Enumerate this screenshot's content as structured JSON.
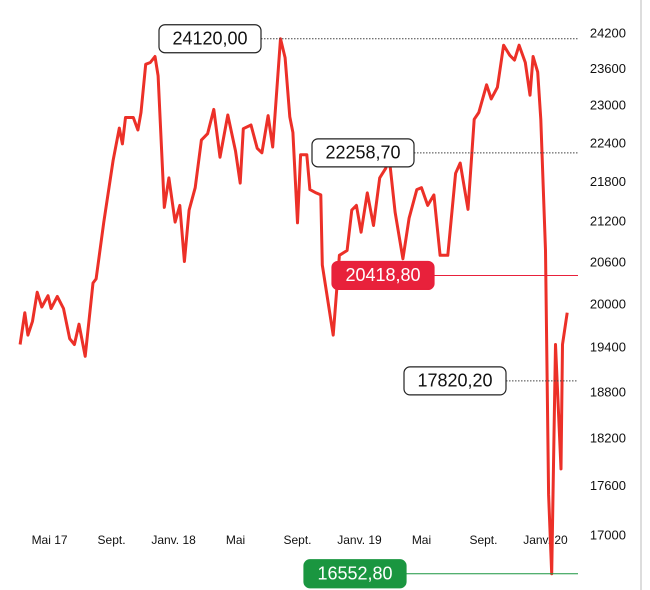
{
  "chart_data": {
    "type": "line",
    "x": [
      -1.9,
      -1.6,
      -1.4,
      -1.1,
      -0.8,
      -0.5,
      -0.1,
      0.1,
      0.5,
      0.9,
      1.3,
      1.6,
      1.9,
      2.3,
      2.8,
      3.0,
      3.5,
      4.1,
      4.5,
      4.7,
      4.9,
      5.4,
      5.7,
      5.9,
      6.2,
      6.5,
      6.8,
      7.0,
      7.4,
      7.7,
      8.1,
      8.4,
      8.7,
      9.0,
      9.4,
      9.8,
      10.2,
      10.6,
      11.0,
      11.5,
      12.0,
      12.3,
      12.5,
      13.0,
      13.4,
      13.7,
      14.1,
      14.4,
      14.9,
      15.2,
      15.5,
      15.7,
      16.0,
      16.2,
      16.6,
      16.8,
      17.2,
      17.5,
      17.6,
      18.3,
      18.7,
      19.2,
      19.5,
      19.8,
      20.1,
      20.5,
      20.9,
      21.3,
      21.7,
      21.9,
      22.3,
      22.8,
      23.2,
      23.7,
      24.0,
      24.4,
      24.8,
      25.2,
      25.7,
      26.2,
      26.5,
      27.0,
      27.4,
      27.7,
      28.2,
      28.5,
      28.9,
      29.3,
      29.7,
      30.0,
      30.3,
      30.7,
      31.0,
      31.2,
      31.5,
      31.7,
      32.0,
      32.2,
      32.4,
      32.65,
      33.0,
      33.1,
      33.4
    ],
    "series": [
      {
        "color": "#ec3028",
        "values": [
          19450,
          19890,
          19580,
          19770,
          20180,
          19970,
          20130,
          19950,
          20120,
          19950,
          19530,
          19450,
          19730,
          19290,
          20310,
          20370,
          21200,
          22140,
          22650,
          22400,
          22820,
          22820,
          22620,
          22900,
          23690,
          23720,
          23820,
          23500,
          21420,
          21870,
          21200,
          21450,
          20620,
          21380,
          21720,
          22460,
          22560,
          22950,
          22190,
          22860,
          22290,
          21790,
          22640,
          22700,
          22330,
          22260,
          22850,
          22350,
          24120,
          23800,
          22830,
          22580,
          21190,
          22230,
          22230,
          21690,
          21640,
          21610,
          20570,
          19580,
          20710,
          20780,
          21380,
          21450,
          21050,
          21640,
          21150,
          21870,
          22020,
          22230,
          21350,
          20660,
          21260,
          21690,
          21720,
          21450,
          21610,
          20710,
          20710,
          21940,
          22100,
          21390,
          22790,
          22900,
          23350,
          23120,
          23310,
          24010,
          23840,
          23760,
          24010,
          23720,
          23180,
          23820,
          23560,
          22790,
          20780,
          17500,
          16552.8,
          19450,
          17820.2,
          19450,
          19890
        ]
      }
    ],
    "xlim": [
      -3.2,
      34.1
    ],
    "xticks": [
      {
        "value": 0,
        "label": "Mai 17"
      },
      {
        "value": 4,
        "label": "Sept."
      },
      {
        "value": 8,
        "label": "Janv. 18"
      },
      {
        "value": 12,
        "label": "Mai"
      },
      {
        "value": 16,
        "label": "Sept."
      },
      {
        "value": 20,
        "label": "Janv. 19"
      },
      {
        "value": 24,
        "label": "Mai"
      },
      {
        "value": 28,
        "label": "Sept."
      },
      {
        "value": 32,
        "label": "Janv. 20"
      }
    ],
    "ylim": [
      16480,
      24440
    ],
    "log_scale": true,
    "yticks": [
      17000,
      17600,
      18200,
      18800,
      19400,
      20000,
      20600,
      21200,
      21800,
      22400,
      23000,
      23600,
      24200
    ],
    "annotations": [
      {
        "label": "24120,00",
        "value": 24120
      },
      {
        "label": "22258,70",
        "value": 22258.7
      },
      {
        "label": "20418,80",
        "value": 20418.8,
        "color": "#e8213b"
      },
      {
        "label": "17820,20",
        "value": 17820.2
      },
      {
        "label": "16552,80",
        "value": 16552.8,
        "color": "#1a9640"
      }
    ]
  }
}
